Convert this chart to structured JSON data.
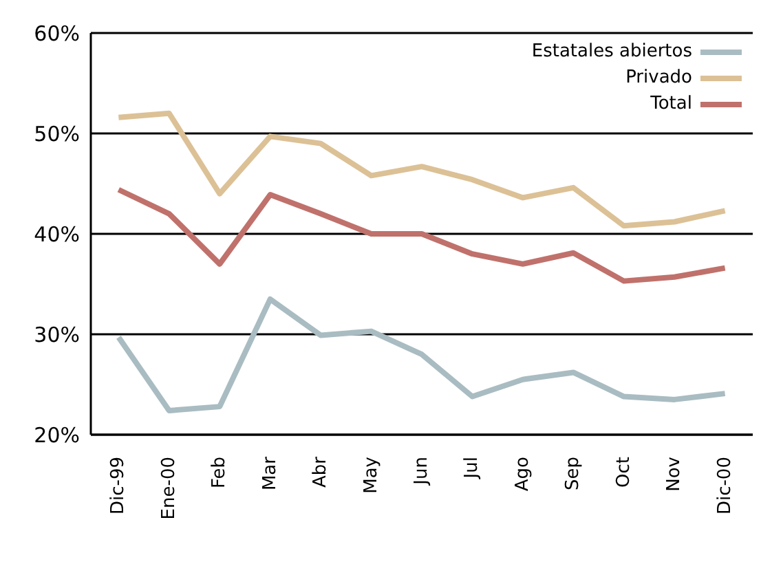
{
  "chart_data": {
    "type": "line",
    "categories": [
      "Dic-99",
      "Ene-00",
      "Feb",
      "Mar",
      "Abr",
      "May",
      "Jun",
      "Jul",
      "Ago",
      "Sep",
      "Oct",
      "Nov",
      "Dic-00"
    ],
    "series": [
      {
        "name": "Estatales abiertos",
        "color": "#a9bcc2",
        "values": [
          29.7,
          22.4,
          22.8,
          33.5,
          29.9,
          30.3,
          28,
          23.8,
          25.5,
          26.2,
          23.8,
          23.5,
          24.1
        ]
      },
      {
        "name": "Privado",
        "color": "#dcc196",
        "values": [
          51.6,
          52,
          44,
          49.7,
          49,
          45.8,
          46.7,
          45.4,
          43.6,
          44.6,
          40.8,
          41.2,
          42.3
        ]
      },
      {
        "name": "Total",
        "color": "#c0716b",
        "values": [
          44.4,
          42,
          37,
          43.9,
          42,
          40,
          40,
          38,
          37,
          38.1,
          35.3,
          35.7,
          36.6
        ]
      }
    ],
    "ylim": [
      20,
      60
    ],
    "yticks": [
      {
        "value": 20,
        "label": "20%"
      },
      {
        "value": 30,
        "label": "30%"
      },
      {
        "value": 40,
        "label": "40%"
      },
      {
        "value": 50,
        "label": "50%"
      },
      {
        "value": 60,
        "label": "60%"
      }
    ],
    "grid": "y",
    "legend": "top right",
    "marker": "none",
    "line_style": "solid"
  }
}
